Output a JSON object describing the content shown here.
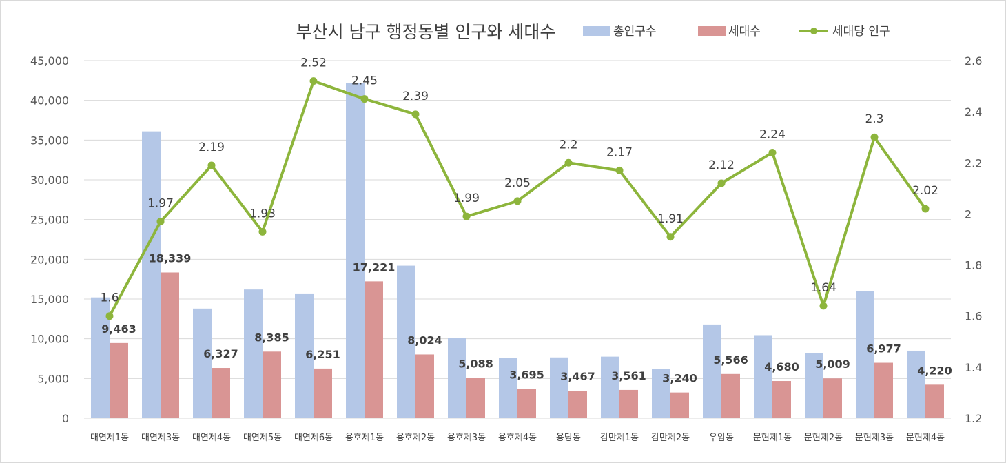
{
  "chart_data": {
    "type": "bar",
    "title": "부산시 남구 행정동별 인구와 세대수",
    "categories": [
      "대연제1동",
      "대연제3동",
      "대연제4동",
      "대연제5동",
      "대연제6동",
      "용호제1동",
      "용호제2동",
      "용호제3동",
      "용호제4동",
      "용당동",
      "감만제1동",
      "감만제2동",
      "우암동",
      "문현제1동",
      "문현제2동",
      "문현제3동",
      "문현제4동"
    ],
    "series": [
      {
        "name": "총인구수",
        "type": "bar",
        "axis": "left",
        "color": "#b4c7e7",
        "values": [
          15200,
          36100,
          13800,
          16200,
          15700,
          42200,
          19200,
          10100,
          7600,
          7650,
          7750,
          6200,
          11800,
          10450,
          8200,
          16000,
          8500
        ]
      },
      {
        "name": "세대수",
        "type": "bar",
        "axis": "left",
        "color": "#d99594",
        "values": [
          9463,
          18339,
          6327,
          8385,
          6251,
          17221,
          8024,
          5088,
          3695,
          3467,
          3561,
          3240,
          5566,
          4680,
          5009,
          6977,
          4220
        ],
        "labels": [
          "9,463",
          "18,339",
          "6,327",
          "8,385",
          "6,251",
          "17,221",
          "8,024",
          "5,088",
          "3,695",
          "3,467",
          "3,561",
          "3,240",
          "5,566",
          "4,680",
          "5,009",
          "6,977",
          "4,220"
        ]
      },
      {
        "name": "세대당 인구",
        "type": "line",
        "axis": "right",
        "color": "#8db53c",
        "values": [
          1.6,
          1.97,
          2.19,
          1.93,
          2.52,
          2.45,
          2.39,
          1.99,
          2.05,
          2.2,
          2.17,
          1.91,
          2.12,
          2.24,
          1.64,
          2.3,
          2.02
        ],
        "labels": [
          "1.6",
          "1.97",
          "2.19",
          "1.93",
          "2.52",
          "2.45",
          "2.39",
          "1.99",
          "2.05",
          "2.2",
          "2.17",
          "1.91",
          "2.12",
          "2.24",
          "1.64",
          "2.3",
          "2.02"
        ]
      }
    ],
    "ylim": [
      0,
      45000
    ],
    "y2lim": [
      1.2,
      2.6
    ],
    "yticks": [
      "0",
      "5,000",
      "10,000",
      "15,000",
      "20,000",
      "25,000",
      "30,000",
      "35,000",
      "40,000",
      "45,000"
    ],
    "y2ticks": [
      "1.2",
      "1.4",
      "1.6",
      "1.8",
      "2",
      "2.2",
      "2.4",
      "2.6"
    ],
    "grid": true,
    "legend": "top"
  }
}
